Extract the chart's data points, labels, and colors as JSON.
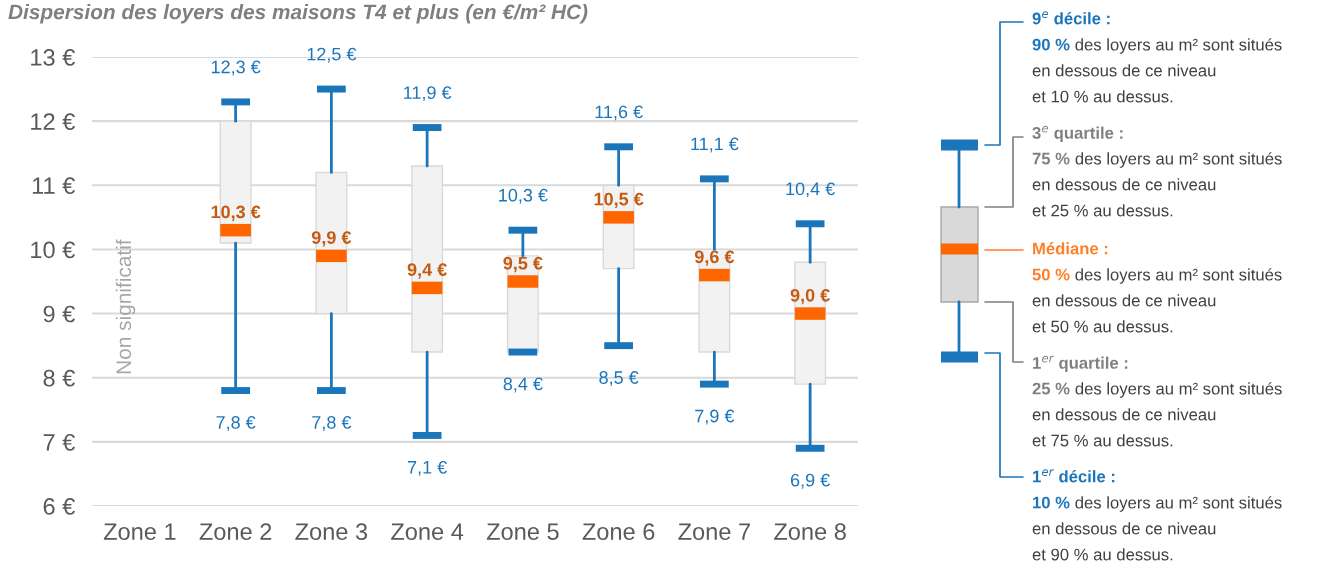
{
  "chart_data": [
    {
      "type": "box",
      "title": "Dispersion des loyers des maisons T4 et plus (en €/m² HC)",
      "categories": [
        "Zone 1",
        "Zone 2",
        "Zone 3",
        "Zone 4",
        "Zone 5",
        "Zone 6",
        "Zone 7",
        "Zone 8"
      ],
      "series": [
        {
          "color": "#f2f2f2",
          "boxes": [
            null,
            {
              "low": 7.8,
              "q1": 10.1,
              "median": 10.3,
              "q3": 12.0,
              "high": 12.3
            },
            {
              "low": 7.8,
              "q1": 9.0,
              "median": 9.9,
              "q3": 11.2,
              "high": 12.5
            },
            {
              "low": 7.1,
              "q1": 8.4,
              "median": 9.4,
              "q3": 11.3,
              "high": 11.9
            },
            {
              "low": 8.4,
              "q1": 8.4,
              "median": 9.5,
              "q3": 9.9,
              "high": 10.3
            },
            {
              "low": 8.5,
              "q1": 9.7,
              "median": 10.5,
              "q3": 11.0,
              "high": 11.6
            },
            {
              "low": 7.9,
              "q1": 8.4,
              "median": 9.6,
              "q3": 10.0,
              "high": 11.1
            },
            {
              "low": 6.9,
              "q1": 7.9,
              "median": 9.0,
              "q3": 9.8,
              "high": 10.4
            }
          ]
        }
      ],
      "value_labels": [
        null,
        [
          "12,3 €",
          "10,3 €",
          "7,8 €"
        ],
        [
          "12,5 €",
          "9,9 €",
          "7,8 €"
        ],
        [
          "11,9 €",
          "9,4 €",
          "7,1 €"
        ],
        [
          "10,3 €",
          "9,5 €",
          "8,4 €"
        ],
        [
          "11,6 €",
          "10,5 €",
          "8,5 €"
        ],
        [
          "11,1 €",
          "9,6 €",
          "7,9 €"
        ],
        [
          "10,4 €",
          "9,0 €",
          "6,9 €"
        ]
      ],
      "ylim": [
        6,
        13
      ],
      "yticks": [
        {
          "value": 6,
          "label": "6 €"
        },
        {
          "value": 7,
          "label": "7 €"
        },
        {
          "value": 8,
          "label": "8 €"
        },
        {
          "value": 9,
          "label": "9 €"
        },
        {
          "value": 10,
          "label": "10 €"
        },
        {
          "value": 11,
          "label": "11 €"
        },
        {
          "value": 12,
          "label": "12 €"
        },
        {
          "value": 13,
          "label": "13 €"
        }
      ],
      "grid": "y",
      "annotations": [
        "Non significatif"
      ]
    },
    {
      "type": "other",
      "annotations": [
        "9$^{e}$ décile :",
        "90 %",
        "des loyers au m² sont situés\nen dessous de ce niveau\net 10 % au dessus.",
        "3$^{e}$ quartile :",
        "75 %",
        "des loyers au m² sont situés\nen dessous de ce niveau\net 25 % au dessus.",
        "Médiane :",
        "50 %",
        "des loyers au m² sont situés\nen dessous de ce niveau\net 50 % au dessus.",
        "1$^{er}$ quartile :",
        "25 %",
        "des loyers au m² sont situés\nen dessous de ce niveau\net 75 % au dessus.",
        "1$^{er}$ décile :",
        "10 %",
        "des loyers au m² sont situés\nen dessous de ce niveau\net 90 % au dessus."
      ],
      "colors": [
        "#1a75bb",
        "#808080",
        "#ff7f27",
        "#808080",
        "#1a75bb"
      ]
    }
  ]
}
